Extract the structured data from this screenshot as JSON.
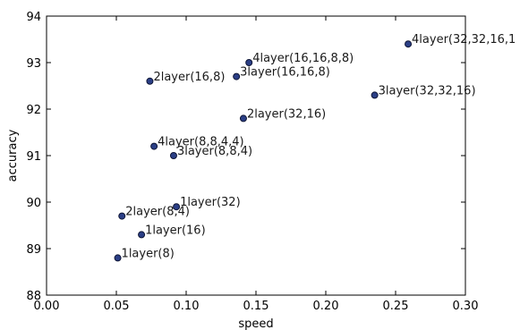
{
  "chart_data": {
    "type": "scatter",
    "title": "",
    "xlabel": "speed",
    "ylabel": "accuracy",
    "xlim": [
      0.0,
      0.3
    ],
    "ylim": [
      88,
      94
    ],
    "xticks": [
      "0.00",
      "0.05",
      "0.10",
      "0.15",
      "0.20",
      "0.25",
      "0.30"
    ],
    "yticks": [
      "88",
      "89",
      "90",
      "91",
      "92",
      "93",
      "94"
    ],
    "grid": false,
    "marker_color": "#2b3f86",
    "points": [
      {
        "label": "1layer(8)",
        "x": 0.051,
        "y": 88.8
      },
      {
        "label": "1layer(16)",
        "x": 0.068,
        "y": 89.3
      },
      {
        "label": "2layer(8,4)",
        "x": 0.054,
        "y": 89.7
      },
      {
        "label": "1layer(32)",
        "x": 0.093,
        "y": 89.9
      },
      {
        "label": "3layer(8,8,4)",
        "x": 0.091,
        "y": 91.0
      },
      {
        "label": "4layer(8,8,4,4)",
        "x": 0.077,
        "y": 91.2
      },
      {
        "label": "2layer(32,16)",
        "x": 0.141,
        "y": 91.8
      },
      {
        "label": "2layer(16,8)",
        "x": 0.074,
        "y": 92.6
      },
      {
        "label": "3layer(16,16,8)",
        "x": 0.136,
        "y": 92.7
      },
      {
        "label": "4layer(16,16,8,8)",
        "x": 0.145,
        "y": 93.0
      },
      {
        "label": "3layer(32,32,16)",
        "x": 0.235,
        "y": 92.3
      },
      {
        "label": "4layer(32,32,16,1",
        "x": 0.259,
        "y": 93.4
      }
    ]
  }
}
